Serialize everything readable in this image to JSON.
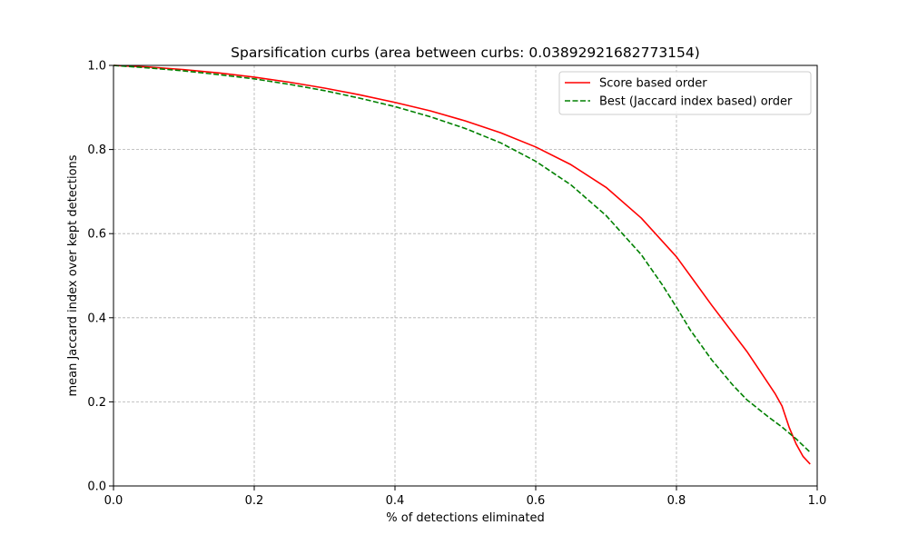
{
  "chart_data": {
    "type": "line",
    "title": "Sparsification curbs (area between curbs: 0.03892921682773154)",
    "xlabel": "% of detections eliminated",
    "ylabel": "mean Jaccard index over kept detections",
    "xlim": [
      0.0,
      1.0
    ],
    "ylim": [
      0.0,
      1.0
    ],
    "xticks": [
      0.0,
      0.2,
      0.4,
      0.6,
      0.8,
      1.0
    ],
    "yticks": [
      0.0,
      0.2,
      0.4,
      0.6,
      0.8,
      1.0
    ],
    "xtick_labels": [
      "0.0",
      "0.2",
      "0.4",
      "0.6",
      "0.8",
      "1.0"
    ],
    "ytick_labels": [
      "0.0",
      "0.2",
      "0.4",
      "0.6",
      "0.8",
      "1.0"
    ],
    "grid": true,
    "legend_position": "top-right",
    "series": [
      {
        "name": "Score based order",
        "color": "#ff0000",
        "dash": "solid",
        "x": [
          0.0,
          0.05,
          0.1,
          0.15,
          0.2,
          0.25,
          0.3,
          0.35,
          0.4,
          0.45,
          0.5,
          0.55,
          0.6,
          0.65,
          0.7,
          0.75,
          0.8,
          0.85,
          0.9,
          0.92,
          0.94,
          0.95,
          0.96,
          0.97,
          0.98,
          0.99
        ],
        "y": [
          1.0,
          0.996,
          0.99,
          0.982,
          0.972,
          0.96,
          0.946,
          0.93,
          0.912,
          0.892,
          0.868,
          0.84,
          0.806,
          0.764,
          0.71,
          0.637,
          0.545,
          0.43,
          0.32,
          0.27,
          0.22,
          0.19,
          0.14,
          0.1,
          0.07,
          0.052
        ]
      },
      {
        "name": "Best (Jaccard index based) order",
        "color": "#008000",
        "dash": "dashed",
        "x": [
          0.0,
          0.05,
          0.1,
          0.15,
          0.2,
          0.25,
          0.3,
          0.35,
          0.4,
          0.45,
          0.5,
          0.55,
          0.6,
          0.65,
          0.7,
          0.75,
          0.78,
          0.8,
          0.82,
          0.85,
          0.88,
          0.9,
          0.93,
          0.95,
          0.97,
          0.99
        ],
        "y": [
          1.0,
          0.994,
          0.987,
          0.978,
          0.968,
          0.955,
          0.94,
          0.922,
          0.902,
          0.878,
          0.85,
          0.816,
          0.772,
          0.716,
          0.643,
          0.55,
          0.478,
          0.425,
          0.37,
          0.3,
          0.24,
          0.205,
          0.165,
          0.14,
          0.112,
          0.08
        ]
      }
    ]
  }
}
